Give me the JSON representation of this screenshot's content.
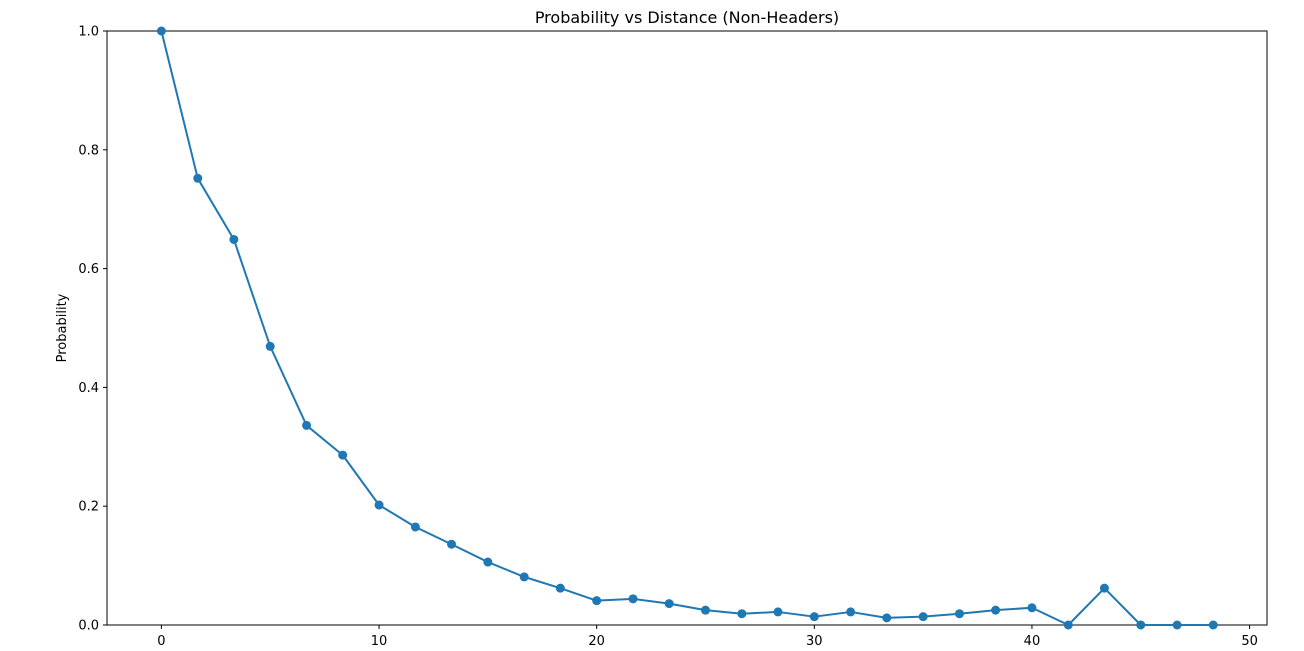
{
  "chart_data": {
    "type": "line",
    "title": "Probability vs Distance (Non-Headers)",
    "xlabel": "",
    "ylabel": "Probability",
    "xlim": [
      -2.5,
      50.8
    ],
    "ylim": [
      0,
      1.0
    ],
    "x_ticks": [
      0,
      10,
      20,
      30,
      40,
      50
    ],
    "y_ticks": [
      0.0,
      0.2,
      0.4,
      0.6,
      0.8,
      1.0
    ],
    "grid": false,
    "line_color": "#1f77b4",
    "marker": "circle",
    "series": [
      {
        "x": [
          0,
          1.67,
          3.33,
          5.0,
          6.67,
          8.33,
          10.0,
          11.67,
          13.33,
          15.0,
          16.67,
          18.33,
          20.0,
          21.67,
          23.33,
          25.0,
          26.67,
          28.33,
          30.0,
          31.67,
          33.33,
          35.0,
          36.67,
          38.33,
          40.0,
          41.67,
          43.33,
          45.0,
          46.67,
          48.33
        ],
        "y": [
          1.0,
          0.752,
          0.649,
          0.469,
          0.336,
          0.286,
          0.202,
          0.165,
          0.136,
          0.106,
          0.081,
          0.062,
          0.041,
          0.044,
          0.036,
          0.025,
          0.019,
          0.022,
          0.014,
          0.022,
          0.012,
          0.014,
          0.019,
          0.025,
          0.029,
          0.0,
          0.062,
          0.0,
          0.0,
          0.0
        ]
      }
    ]
  }
}
